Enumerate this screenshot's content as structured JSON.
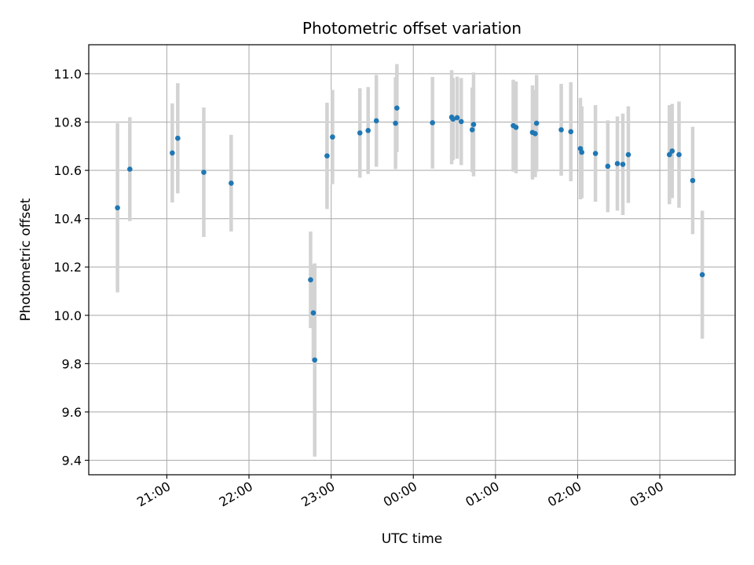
{
  "chart_data": {
    "type": "scatter",
    "title": "Photometric offset variation",
    "xlabel": "UTC time",
    "ylabel": "Photometric offset",
    "ylim": [
      9.34,
      11.12
    ],
    "xlim": [
      "20:03",
      "03:55"
    ],
    "grid": true,
    "yticks": [
      9.4,
      9.6,
      9.8,
      10.0,
      10.2,
      10.4,
      10.6,
      10.8,
      11.0
    ],
    "ytick_labels": [
      "9.4",
      "9.6",
      "9.8",
      "10.0",
      "10.2",
      "10.4",
      "10.6",
      "10.8",
      "11.0"
    ],
    "xticks": [
      "21:00",
      "22:00",
      "23:00",
      "00:00",
      "01:00",
      "02:00",
      "03:00"
    ],
    "xtick_labels": [
      "21:00",
      "22:00",
      "23:00",
      "00:00",
      "01:00",
      "02:00",
      "03:00"
    ],
    "point_color": "#1f77b4",
    "errorbar_color": "#d3d3d3",
    "series": [
      {
        "x": [
          "20:24",
          "20:33",
          "21:04",
          "21:08",
          "21:27",
          "21:47",
          "22:45",
          "22:47",
          "22:48",
          "22:57",
          "23:01",
          "23:21",
          "23:27",
          "23:33",
          "23:47",
          "23:48",
          "00:14",
          "00:28",
          "00:29",
          "00:32",
          "00:35",
          "00:43",
          "00:44",
          "01:13",
          "01:15",
          "01:27",
          "01:29",
          "01:30",
          "01:48",
          "01:55",
          "02:02",
          "02:03",
          "02:13",
          "02:22",
          "02:29",
          "02:33",
          "02:37",
          "03:07",
          "03:09",
          "03:14",
          "03:24",
          "03:31"
        ],
        "y": [
          10.445,
          10.605,
          10.672,
          10.733,
          10.592,
          10.547,
          10.147,
          10.01,
          9.815,
          10.66,
          10.738,
          10.755,
          10.765,
          10.805,
          10.795,
          10.858,
          10.797,
          10.82,
          10.812,
          10.818,
          10.802,
          10.768,
          10.79,
          10.785,
          10.778,
          10.757,
          10.752,
          10.795,
          10.768,
          10.76,
          10.69,
          10.675,
          10.67,
          10.617,
          10.628,
          10.625,
          10.665,
          10.665,
          10.68,
          10.665,
          10.558,
          10.168
        ],
        "yerr": [
          0.35,
          0.215,
          0.205,
          0.228,
          0.268,
          0.2,
          0.2,
          0.2,
          0.4,
          0.22,
          0.195,
          0.185,
          0.18,
          0.19,
          0.19,
          0.182,
          0.19,
          0.195,
          0.17,
          0.17,
          0.18,
          0.175,
          0.215,
          0.19,
          0.19,
          0.195,
          0.18,
          0.2,
          0.19,
          0.205,
          0.21,
          0.19,
          0.2,
          0.19,
          0.195,
          0.21,
          0.2,
          0.205,
          0.195,
          0.22,
          0.222,
          0.265
        ]
      }
    ]
  }
}
